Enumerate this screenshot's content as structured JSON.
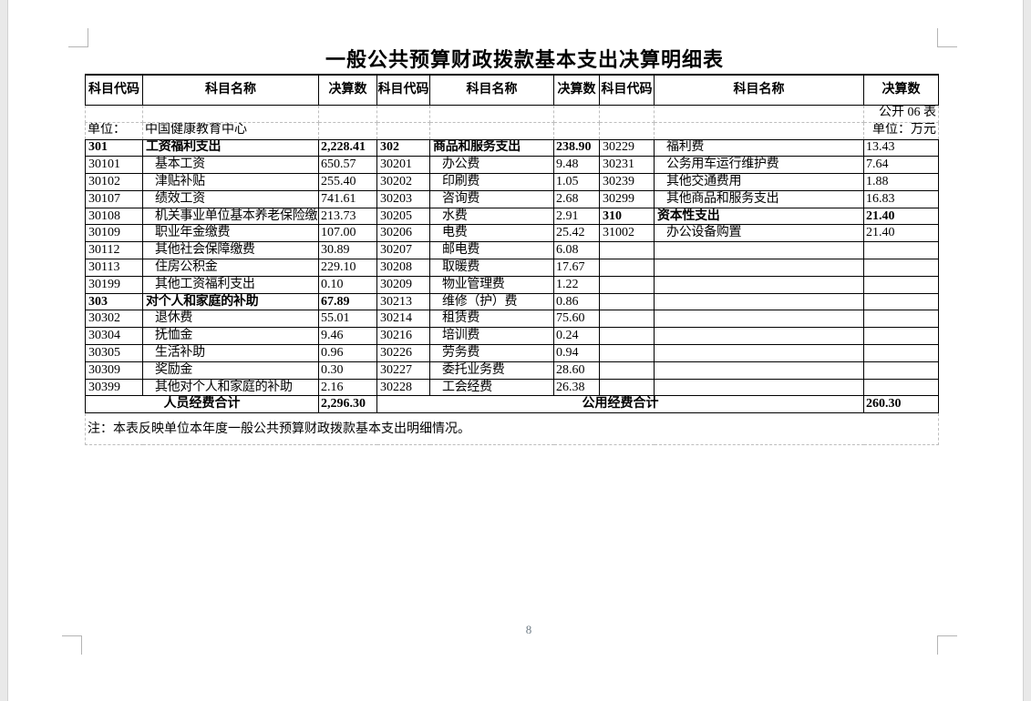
{
  "page": {
    "title": "一般公共预算财政拨款基本支出决算明细表",
    "form_label": "公开 06 表",
    "unit_label": "单位：",
    "unit_value": "中国健康教育中心",
    "unit_measure": "单位：万元",
    "note": "注：本表反映单位本年度一般公共预算财政拨款基本支出明细情况。",
    "page_number": "8"
  },
  "table": {
    "headers": [
      "科目代码",
      "科目名称",
      "决算数",
      "科目代码",
      "科目名称",
      "决算数",
      "科目代码",
      "科目名称",
      "决算数"
    ],
    "rows": [
      {
        "cells": [
          "301",
          "工资福利支出",
          "2,228.41",
          "302",
          "商品和服务支出",
          "238.90",
          "30229",
          "福利费",
          "13.43"
        ],
        "bold": [
          true,
          true,
          false
        ]
      },
      {
        "cells": [
          "30101",
          "基本工资",
          "650.57",
          "30201",
          "办公费",
          "9.48",
          "30231",
          "公务用车运行维护费",
          "7.64"
        ],
        "bold": [
          false,
          false,
          false
        ]
      },
      {
        "cells": [
          "30102",
          "津贴补贴",
          "255.40",
          "30202",
          "印刷费",
          "1.05",
          "30239",
          "其他交通费用",
          "1.88"
        ],
        "bold": [
          false,
          false,
          false
        ]
      },
      {
        "cells": [
          "30107",
          "绩效工资",
          "741.61",
          "30203",
          "咨询费",
          "2.68",
          "30299",
          "其他商品和服务支出",
          "16.83"
        ],
        "bold": [
          false,
          false,
          false
        ]
      },
      {
        "cells": [
          "30108",
          "机关事业单位基本养老保险缴费",
          "213.73",
          "30205",
          "水费",
          "2.91",
          "310",
          "资本性支出",
          "21.40"
        ],
        "bold": [
          false,
          false,
          true
        ]
      },
      {
        "cells": [
          "30109",
          "职业年金缴费",
          "107.00",
          "30206",
          "电费",
          "25.42",
          "31002",
          "办公设备购置",
          "21.40"
        ],
        "bold": [
          false,
          false,
          false
        ]
      },
      {
        "cells": [
          "30112",
          "其他社会保障缴费",
          "30.89",
          "30207",
          "邮电费",
          "6.08",
          "",
          "",
          ""
        ],
        "bold": [
          false,
          false,
          false
        ]
      },
      {
        "cells": [
          "30113",
          "住房公积金",
          "229.10",
          "30208",
          "取暖费",
          "17.67",
          "",
          "",
          ""
        ],
        "bold": [
          false,
          false,
          false
        ]
      },
      {
        "cells": [
          "30199",
          "其他工资福利支出",
          "0.10",
          "30209",
          "物业管理费",
          "1.22",
          "",
          "",
          ""
        ],
        "bold": [
          false,
          false,
          false
        ]
      },
      {
        "cells": [
          "303",
          "对个人和家庭的补助",
          "67.89",
          "30213",
          "维修（护）费",
          "0.86",
          "",
          "",
          ""
        ],
        "bold": [
          true,
          false,
          false
        ]
      },
      {
        "cells": [
          "30302",
          "退休费",
          "55.01",
          "30214",
          "租赁费",
          "75.60",
          "",
          "",
          ""
        ],
        "bold": [
          false,
          false,
          false
        ]
      },
      {
        "cells": [
          "30304",
          "抚恤金",
          "9.46",
          "30216",
          "培训费",
          "0.24",
          "",
          "",
          ""
        ],
        "bold": [
          false,
          false,
          false
        ]
      },
      {
        "cells": [
          "30305",
          "生活补助",
          "0.96",
          "30226",
          "劳务费",
          "0.94",
          "",
          "",
          ""
        ],
        "bold": [
          false,
          false,
          false
        ]
      },
      {
        "cells": [
          "30309",
          "奖励金",
          "0.30",
          "30227",
          "委托业务费",
          "28.60",
          "",
          "",
          ""
        ],
        "bold": [
          false,
          false,
          false
        ]
      },
      {
        "cells": [
          "30399",
          "其他对个人和家庭的补助",
          "2.16",
          "30228",
          "工会经费",
          "26.38",
          "",
          "",
          ""
        ],
        "bold": [
          false,
          false,
          false
        ]
      }
    ],
    "footer": {
      "left_label": "人员经费合计",
      "left_value": "2,296.30",
      "right_label": "公用经费合计",
      "right_value": "260.30"
    }
  }
}
